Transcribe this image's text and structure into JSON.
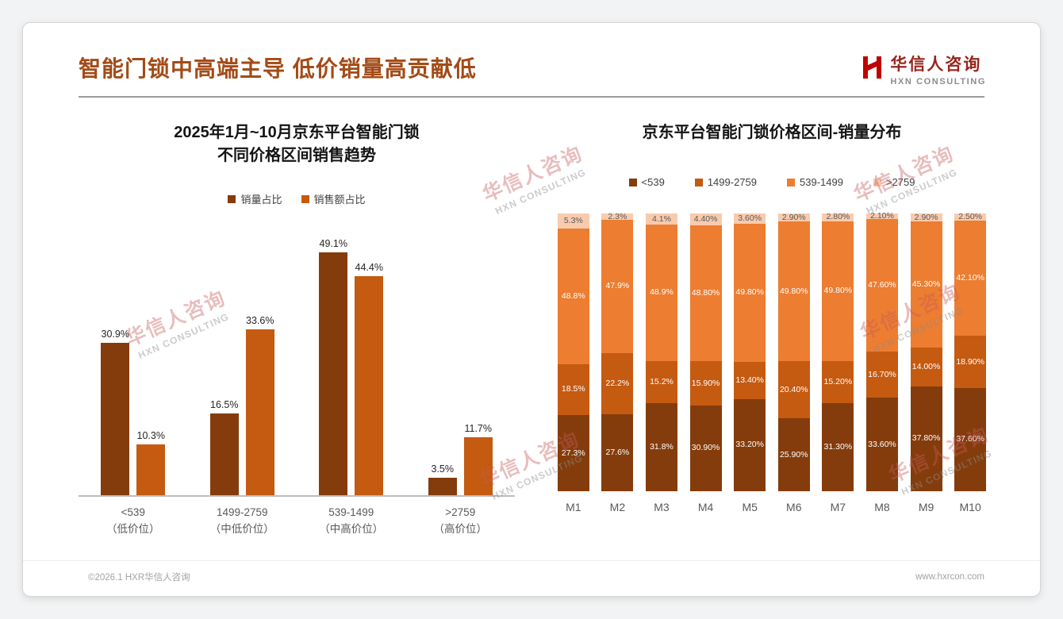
{
  "page": {
    "title": "智能门锁中高端主导 低价销量高贡献低",
    "footer_left": "©2026.1 HXR华信人咨询",
    "footer_right": "www.hxrcon.com"
  },
  "logo": {
    "cn": "华信人咨询",
    "en": "HXN CONSULTING"
  },
  "watermark": {
    "cn": "华信人咨询",
    "en": "HXN CONSULTING"
  },
  "colors": {
    "title": "#A34B17",
    "series_dark_brown": "#843C0C",
    "series_dark_orange": "#C55A11",
    "series_orange": "#ED7D31",
    "series_light_peach": "#F8CBAD"
  },
  "chart_data": [
    {
      "type": "bar",
      "title_lines": [
        "2025年1月~10月京东平台智能门锁",
        "不同价格区间销售趋势"
      ],
      "categories": [
        [
          "<539",
          "（低价位）"
        ],
        [
          "1499-2759",
          "（中低价位）"
        ],
        [
          "539-1499",
          "（中高价位）"
        ],
        [
          ">2759",
          "（高价位）"
        ]
      ],
      "ymax": 54,
      "legend_position": "top",
      "grid": false,
      "series": [
        {
          "name": "销量占比",
          "color": "#843C0C",
          "values": [
            30.9,
            16.5,
            49.1,
            3.5
          ],
          "labels": [
            "30.9%",
            "16.5%",
            "49.1%",
            "3.5%"
          ]
        },
        {
          "name": "销售额占比",
          "color": "#C55A11",
          "values": [
            10.3,
            33.6,
            44.4,
            11.7
          ],
          "labels": [
            "10.3%",
            "33.6%",
            "44.4%",
            "11.7%"
          ]
        }
      ]
    },
    {
      "type": "bar",
      "stacked": true,
      "percent_stacked": true,
      "title": "京东平台智能门锁价格区间-销量分布",
      "categories": [
        "M1",
        "M2",
        "M3",
        "M4",
        "M5",
        "M6",
        "M7",
        "M8",
        "M9",
        "M10"
      ],
      "legend_position": "top",
      "grid": false,
      "series": [
        {
          "name": "<539",
          "color": "#843C0C",
          "label_color": "#ffffff",
          "values": [
            27.3,
            27.6,
            31.8,
            30.9,
            33.2,
            25.9,
            31.3,
            33.6,
            37.8,
            37.6
          ],
          "labels": [
            "27.3%",
            "27.6%",
            "31.8%",
            "30.90%",
            "33.20%",
            "25.90%",
            "31.30%",
            "33.60%",
            "37.80%",
            "37.60%"
          ]
        },
        {
          "name": "1499-2759",
          "color": "#C55A11",
          "label_color": "#ffffff",
          "values": [
            18.5,
            22.2,
            15.2,
            15.9,
            13.4,
            20.4,
            15.2,
            16.7,
            14.0,
            18.9
          ],
          "labels": [
            "18.5%",
            "22.2%",
            "15.2%",
            "15.90%",
            "13.40%",
            "20.40%",
            "15.20%",
            "16.70%",
            "14.00%",
            "18.90%"
          ]
        },
        {
          "name": "539-1499",
          "color": "#ED7D31",
          "label_color": "#ffffff",
          "values": [
            48.8,
            47.9,
            48.9,
            48.8,
            49.8,
            49.8,
            49.8,
            47.6,
            45.3,
            42.1
          ],
          "labels": [
            "48.8%",
            "47.9%",
            "48.9%",
            "48.80%",
            "49.80%",
            "49.80%",
            "49.80%",
            "47.60%",
            "45.30%",
            "42.10%"
          ]
        },
        {
          "name": ">2759",
          "color": "#F8CBAD",
          "label_color": "#595959",
          "values": [
            5.3,
            2.3,
            4.1,
            4.4,
            3.6,
            2.9,
            2.8,
            2.1,
            2.9,
            2.5
          ],
          "labels": [
            "5.3%",
            "2.3%",
            "4.1%",
            "4.40%",
            "3.60%",
            "2.90%",
            "2.80%",
            "2.10%",
            "2.90%",
            "2.50%"
          ]
        }
      ]
    }
  ]
}
